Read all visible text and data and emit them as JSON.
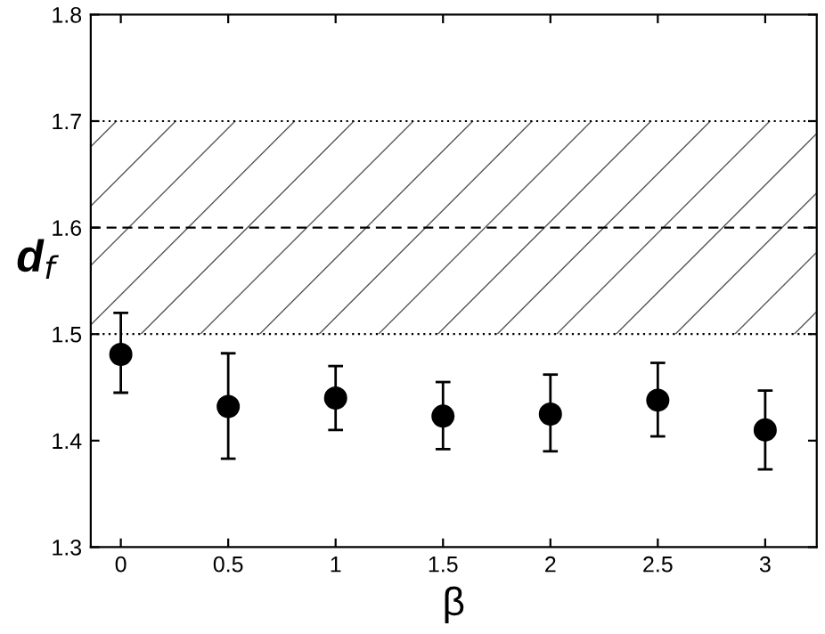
{
  "chart_data": {
    "type": "scatter",
    "xlabel": "β",
    "ylabel": "d$_{f}$",
    "x": [
      0,
      0.5,
      1,
      1.5,
      2,
      2.5,
      3
    ],
    "series": [
      {
        "color": "#000000",
        "values": [
          1.481,
          1.432,
          1.44,
          1.423,
          1.425,
          1.438,
          1.41
        ],
        "errors": [
          [
            1.445,
            1.52
          ],
          [
            1.383,
            1.482
          ],
          [
            1.41,
            1.47
          ],
          [
            1.392,
            1.455
          ],
          [
            1.39,
            1.462
          ],
          [
            1.404,
            1.473
          ],
          [
            1.373,
            1.447
          ]
        ]
      }
    ],
    "marker": "circle",
    "xlim": [
      -0.14,
      3.24
    ],
    "ylim": [
      1.3,
      1.8
    ],
    "xticks": [
      0,
      0.5,
      1,
      1.5,
      2,
      2.5,
      3
    ],
    "yticks": [
      1.3,
      1.4,
      1.5,
      1.6,
      1.7,
      1.8
    ],
    "bands": [
      {
        "axis": "y",
        "from": 1.5,
        "to": 1.7,
        "color": "#555555"
      }
    ],
    "ref_lines": [
      {
        "axis": "y",
        "value": 1.5,
        "color": "#000000",
        "line_style": "dotted"
      },
      {
        "axis": "y",
        "value": 1.6,
        "color": "#000000",
        "line_style": "dashed"
      },
      {
        "axis": "y",
        "value": 1.7,
        "color": "#000000",
        "line_style": "dotted"
      }
    ]
  }
}
